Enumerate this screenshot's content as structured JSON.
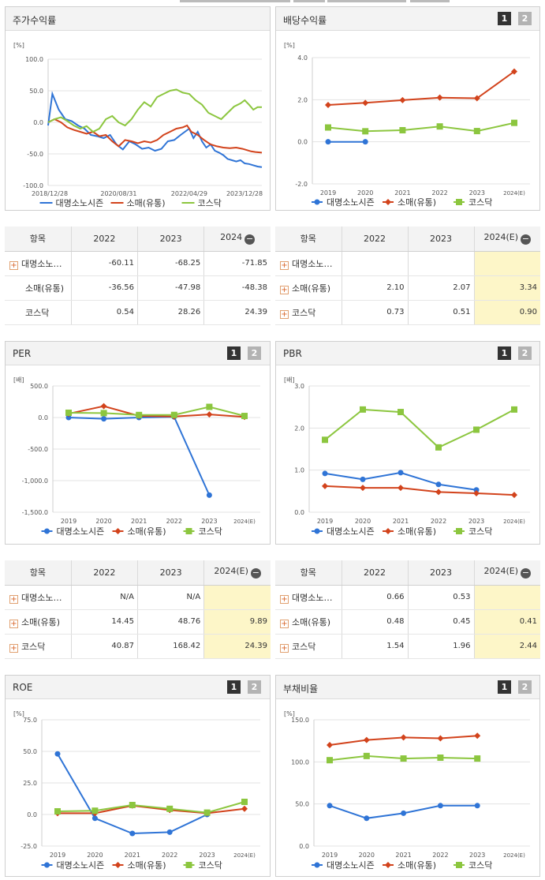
{
  "colors": {
    "blue": "#2f74d6",
    "red": "#d2431c",
    "green": "#8cc63f"
  },
  "legend": [
    "대명소노시즌",
    "소매(유통)",
    "코스닥"
  ],
  "tabs": {
    "one": "1",
    "two": "2"
  },
  "panels": {
    "stock": {
      "title": "주가수익률",
      "unit": "[%]",
      "chart_data": {
        "type": "line",
        "title": "주가수익률",
        "ylim": [
          -100,
          100
        ],
        "yticks": [
          "100.0",
          "50.0",
          "0.0",
          "-50.0",
          "-100.0"
        ],
        "xticks": [
          "2018/12/28",
          "2020/08/31",
          "2022/04/29",
          "2023/12/28"
        ],
        "series": [
          {
            "name": "대명소노시즌",
            "points": [
              [
                0,
                -5
              ],
              [
                2,
                45
              ],
              [
                5,
                20
              ],
              [
                8,
                5
              ],
              [
                11,
                2
              ],
              [
                14,
                -5
              ],
              [
                17,
                -10
              ],
              [
                20,
                -20
              ],
              [
                23,
                -22
              ],
              [
                26,
                -25
              ],
              [
                29,
                -20
              ],
              [
                32,
                -35
              ],
              [
                35,
                -43
              ],
              [
                38,
                -30
              ],
              [
                41,
                -35
              ],
              [
                44,
                -42
              ],
              [
                47,
                -40
              ],
              [
                50,
                -45
              ],
              [
                53,
                -42
              ],
              [
                56,
                -30
              ],
              [
                59,
                -28
              ],
              [
                62,
                -20
              ],
              [
                64,
                -15
              ],
              [
                66,
                -10
              ],
              [
                68,
                -25
              ],
              [
                70,
                -15
              ],
              [
                72,
                -30
              ],
              [
                74,
                -40
              ],
              [
                76,
                -35
              ],
              [
                78,
                -45
              ],
              [
                80,
                -48
              ],
              [
                82,
                -52
              ],
              [
                84,
                -58
              ],
              [
                86,
                -60
              ],
              [
                88,
                -62
              ],
              [
                90,
                -60
              ],
              [
                92,
                -65
              ],
              [
                94,
                -66
              ],
              [
                96,
                -68
              ],
              [
                98,
                -70
              ],
              [
                100,
                -71
              ]
            ]
          },
          {
            "name": "소매(유통)",
            "points": [
              [
                0,
                0
              ],
              [
                3,
                5
              ],
              [
                6,
                0
              ],
              [
                9,
                -8
              ],
              [
                12,
                -12
              ],
              [
                15,
                -15
              ],
              [
                18,
                -18
              ],
              [
                21,
                -15
              ],
              [
                24,
                -22
              ],
              [
                27,
                -20
              ],
              [
                30,
                -30
              ],
              [
                33,
                -38
              ],
              [
                36,
                -28
              ],
              [
                39,
                -30
              ],
              [
                42,
                -33
              ],
              [
                45,
                -30
              ],
              [
                48,
                -32
              ],
              [
                51,
                -28
              ],
              [
                54,
                -20
              ],
              [
                57,
                -15
              ],
              [
                60,
                -10
              ],
              [
                63,
                -8
              ],
              [
                65,
                -5
              ],
              [
                67,
                -15
              ],
              [
                70,
                -20
              ],
              [
                73,
                -28
              ],
              [
                76,
                -35
              ],
              [
                79,
                -38
              ],
              [
                82,
                -40
              ],
              [
                85,
                -41
              ],
              [
                88,
                -40
              ],
              [
                91,
                -42
              ],
              [
                93,
                -44
              ],
              [
                95,
                -46
              ],
              [
                97,
                -47
              ],
              [
                100,
                -48
              ]
            ]
          },
          {
            "name": "코스닥",
            "points": [
              [
                0,
                0
              ],
              [
                3,
                5
              ],
              [
                6,
                8
              ],
              [
                9,
                2
              ],
              [
                12,
                -5
              ],
              [
                15,
                -10
              ],
              [
                18,
                -6
              ],
              [
                21,
                -15
              ],
              [
                24,
                -10
              ],
              [
                27,
                5
              ],
              [
                30,
                10
              ],
              [
                33,
                0
              ],
              [
                36,
                -5
              ],
              [
                39,
                5
              ],
              [
                42,
                20
              ],
              [
                45,
                32
              ],
              [
                48,
                25
              ],
              [
                51,
                40
              ],
              [
                54,
                45
              ],
              [
                57,
                50
              ],
              [
                60,
                52
              ],
              [
                63,
                47
              ],
              [
                66,
                45
              ],
              [
                69,
                35
              ],
              [
                72,
                28
              ],
              [
                75,
                15
              ],
              [
                78,
                10
              ],
              [
                81,
                5
              ],
              [
                84,
                15
              ],
              [
                87,
                25
              ],
              [
                90,
                30
              ],
              [
                92,
                35
              ],
              [
                94,
                28
              ],
              [
                96,
                20
              ],
              [
                98,
                24
              ],
              [
                100,
                24
              ]
            ]
          }
        ]
      }
    },
    "dividend": {
      "title": "배당수익률",
      "unit": "[%]",
      "chart_data": {
        "type": "line",
        "title": "배당수익률",
        "ylim": [
          -2,
          4
        ],
        "yticks": [
          "4.0",
          "2.0",
          "0.0",
          "-2.0"
        ],
        "categories": [
          "2019",
          "2020",
          "2021",
          "2022",
          "2023",
          "2024(E)"
        ],
        "series": [
          {
            "name": "대명소노시즌",
            "values": [
              0.0,
              0.0,
              null,
              null,
              null,
              null
            ]
          },
          {
            "name": "소매(유통)",
            "values": [
              1.75,
              1.85,
              1.98,
              2.1,
              2.07,
              3.34
            ]
          },
          {
            "name": "코스닥",
            "values": [
              0.68,
              0.5,
              0.55,
              0.73,
              0.51,
              0.9
            ]
          }
        ]
      }
    },
    "per": {
      "title": "PER",
      "unit": "[배]",
      "chart_data": {
        "type": "line",
        "title": "PER",
        "ylim": [
          -1500,
          500
        ],
        "yticks": [
          "500.0",
          "0.0",
          "-500.0",
          "-1,000.0",
          "-1,500.0"
        ],
        "categories": [
          "2019",
          "2020",
          "2021",
          "2022",
          "2023",
          "2024(E)"
        ],
        "series": [
          {
            "name": "대명소노시즌",
            "values": [
              0,
              -20,
              0,
              10,
              -1230,
              null
            ]
          },
          {
            "name": "소매(유통)",
            "values": [
              60,
              180,
              25,
              14.45,
              48.76,
              9.89
            ]
          },
          {
            "name": "코스닥",
            "values": [
              75,
              70,
              40,
              40.87,
              168.42,
              24.39
            ]
          }
        ]
      }
    },
    "pbr": {
      "title": "PBR",
      "unit": "[배]",
      "chart_data": {
        "type": "line",
        "title": "PBR",
        "ylim": [
          0,
          3
        ],
        "yticks": [
          "3.0",
          "2.0",
          "1.0",
          "0.0"
        ],
        "categories": [
          "2019",
          "2020",
          "2021",
          "2022",
          "2023",
          "2024(E)"
        ],
        "series": [
          {
            "name": "대명소노시즌",
            "values": [
              0.92,
              0.78,
              0.94,
              0.66,
              0.53,
              null
            ]
          },
          {
            "name": "소매(유통)",
            "values": [
              0.62,
              0.58,
              0.58,
              0.48,
              0.45,
              0.41
            ]
          },
          {
            "name": "코스닥",
            "values": [
              1.72,
              2.44,
              2.38,
              1.54,
              1.96,
              2.44
            ]
          }
        ]
      }
    },
    "roe": {
      "title": "ROE",
      "unit": "[%]",
      "chart_data": {
        "type": "line",
        "title": "ROE",
        "ylim": [
          -25,
          75
        ],
        "yticks": [
          "75.0",
          "50.0",
          "25.0",
          "0.0",
          "-25.0"
        ],
        "categories": [
          "2019",
          "2020",
          "2021",
          "2022",
          "2023",
          "2024(E)"
        ],
        "series": [
          {
            "name": "대명소노시즌",
            "values": [
              48,
              -3,
              -15,
              -14,
              0,
              null
            ]
          },
          {
            "name": "소매(유통)",
            "values": [
              1,
              1,
              7,
              3.5,
              1,
              4.5
            ]
          },
          {
            "name": "코스닥",
            "values": [
              2.5,
              3,
              7.5,
              4.5,
              1.5,
              10
            ]
          }
        ]
      }
    },
    "debt": {
      "title": "부채비율",
      "unit": "[%]",
      "chart_data": {
        "type": "line",
        "title": "부채비율",
        "ylim": [
          0,
          150
        ],
        "yticks": [
          "150.0",
          "100.0",
          "50.0",
          "0.0"
        ],
        "categories": [
          "2019",
          "2020",
          "2021",
          "2022",
          "2023",
          "2024(E)"
        ],
        "series": [
          {
            "name": "대명소노시즌",
            "values": [
              48,
              33,
              39,
              48,
              48,
              null
            ]
          },
          {
            "name": "소매(유통)",
            "values": [
              120,
              126,
              129,
              128,
              131,
              null
            ]
          },
          {
            "name": "코스닥",
            "values": [
              102,
              107,
              104,
              105,
              104,
              null
            ]
          }
        ]
      }
    }
  },
  "tables": {
    "stock": {
      "headers": [
        "항목",
        "2022",
        "2023",
        "2024"
      ],
      "rows": [
        {
          "name": "대명소노…",
          "plus": true,
          "v": [
            "-60.11",
            "-68.25",
            "-71.85"
          ]
        },
        {
          "name": "소매(유통)",
          "plus": false,
          "v": [
            "-36.56",
            "-47.98",
            "-48.38"
          ]
        },
        {
          "name": "코스닥",
          "plus": false,
          "v": [
            "0.54",
            "28.26",
            "24.39"
          ]
        }
      ]
    },
    "dividend": {
      "headers": [
        "항목",
        "2022",
        "2023",
        "2024(E)"
      ],
      "rows": [
        {
          "name": "대명소노…",
          "plus": true,
          "v": [
            "",
            "",
            ""
          ]
        },
        {
          "name": "소매(유통)",
          "plus": true,
          "v": [
            "2.10",
            "2.07",
            "3.34"
          ]
        },
        {
          "name": "코스닥",
          "plus": true,
          "v": [
            "0.73",
            "0.51",
            "0.90"
          ]
        }
      ]
    },
    "per": {
      "headers": [
        "항목",
        "2022",
        "2023",
        "2024(E)"
      ],
      "rows": [
        {
          "name": "대명소노…",
          "plus": true,
          "v": [
            "N/A",
            "N/A",
            ""
          ]
        },
        {
          "name": "소매(유통)",
          "plus": true,
          "v": [
            "14.45",
            "48.76",
            "9.89"
          ]
        },
        {
          "name": "코스닥",
          "plus": true,
          "v": [
            "40.87",
            "168.42",
            "24.39"
          ]
        }
      ]
    },
    "pbr": {
      "headers": [
        "항목",
        "2022",
        "2023",
        "2024(E)"
      ],
      "rows": [
        {
          "name": "대명소노…",
          "plus": true,
          "v": [
            "0.66",
            "0.53",
            ""
          ]
        },
        {
          "name": "소매(유통)",
          "plus": true,
          "v": [
            "0.48",
            "0.45",
            "0.41"
          ]
        },
        {
          "name": "코스닥",
          "plus": true,
          "v": [
            "1.54",
            "1.96",
            "2.44"
          ]
        }
      ]
    }
  }
}
